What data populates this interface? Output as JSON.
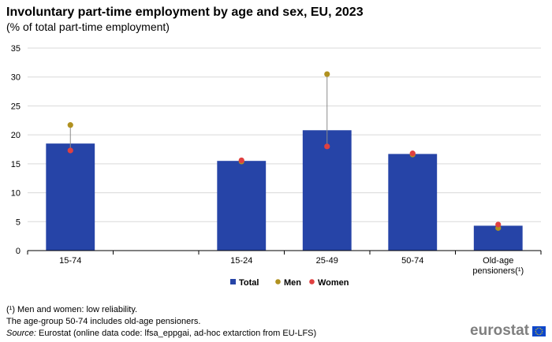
{
  "chart_data": {
    "type": "bar",
    "title": "Involuntary part-time employment by age and sex, EU, 2023",
    "subtitle": "(% of total part-time employment)",
    "categories": [
      "15-74",
      "",
      "15-24",
      "25-49",
      "50-74",
      [
        "Old-age",
        "pensioners(¹)"
      ]
    ],
    "ylim": [
      0,
      35
    ],
    "yticks": [
      0,
      5,
      10,
      15,
      20,
      25,
      30,
      35
    ],
    "grid": true,
    "legend_position": "bottom-center",
    "series": [
      {
        "name": "Total",
        "kind": "bar",
        "color": "#2644a7",
        "values": [
          18.5,
          null,
          15.5,
          20.8,
          16.7,
          4.3
        ]
      },
      {
        "name": "Men",
        "kind": "point",
        "color": "#b09120",
        "values": [
          21.7,
          null,
          15.4,
          30.5,
          16.6,
          3.9
        ]
      },
      {
        "name": "Women",
        "kind": "point",
        "color": "#e04040",
        "values": [
          17.3,
          null,
          15.6,
          18.0,
          16.8,
          4.5
        ]
      }
    ]
  },
  "notes": [
    "(¹) Men and women:  low reliability.",
    "The age-group 50-74 includes old-age pensioners."
  ],
  "source": {
    "label": "Source:",
    "text": " Eurostat (online data code: lfsa_eppgai, ad-hoc extarction from EU-LFS)"
  },
  "logo": {
    "text": "eurostat",
    "icon": "eu-flag-icon",
    "flag_color": "#0e47cb"
  }
}
